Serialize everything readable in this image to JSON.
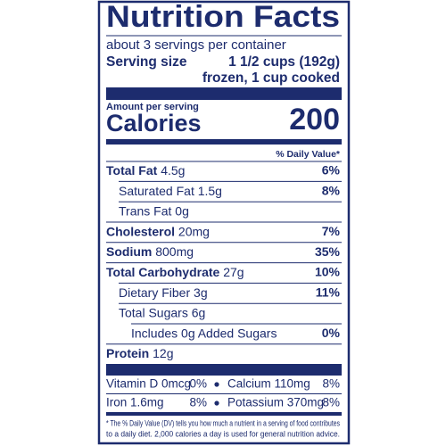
{
  "title": "Nutrition Facts",
  "servings": "about 3 servings per container",
  "serving_size_label": "Serving size",
  "serving_size_value": [
    "1 1/2 cups (192g)",
    "frozen, 1 cup cooked"
  ],
  "amount_per_serving": "Amount per serving",
  "calories_label": "Calories",
  "calories_value": "200",
  "dv_header": "% Daily Value*",
  "nutrients": [
    {
      "name": "Total Fat",
      "amount": "4.5g",
      "dv": "6%",
      "bold": true,
      "indent": 0
    },
    {
      "name": "Saturated Fat",
      "amount": "1.5g",
      "dv": "8%",
      "bold": false,
      "indent": 1
    },
    {
      "name": "Trans Fat",
      "amount": "0g",
      "bold": false,
      "indent": 1
    },
    {
      "name": "Cholesterol",
      "amount": "20mg",
      "dv": "7%",
      "bold": true,
      "indent": 0
    },
    {
      "name": "Sodium",
      "amount": "800mg",
      "dv": "35%",
      "bold": true,
      "indent": 0
    },
    {
      "name": "Total Carbohydrate",
      "amount": "27g",
      "dv": "10%",
      "bold": true,
      "indent": 0
    },
    {
      "name": "Dietary Fiber",
      "amount": "3g",
      "dv": "11%",
      "bold": false,
      "indent": 1
    },
    {
      "name": "Total Sugars",
      "amount": "6g",
      "bold": false,
      "indent": 1
    },
    {
      "name": "Includes 0g Added Sugars",
      "dv": "0%",
      "bold": false,
      "indent": 2
    },
    {
      "name": "Protein",
      "amount": "12g",
      "bold": true,
      "indent": 0
    }
  ],
  "vitamins": [
    [
      {
        "label": "Vitamin D 0mcg",
        "dv": "0%"
      },
      {
        "label": "Calcium 110mg",
        "dv": "8%"
      }
    ],
    [
      {
        "label": "Iron 1.6mg",
        "dv": "8%"
      },
      {
        "label": "Potassium 370mg",
        "dv": "8%"
      }
    ]
  ],
  "footnote": [
    "* The % Daily Value (DV) tells you how much a nutrient in a serving of food contributes",
    "to a daily diet. 2,000 calories a day is used for general nutrition advice."
  ]
}
